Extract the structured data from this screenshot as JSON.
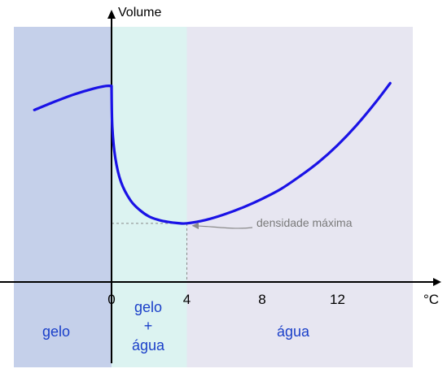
{
  "chart_data": {
    "type": "line",
    "title": "",
    "ylabel": "Volume",
    "xlabel": "°C",
    "x_ticks": [
      {
        "value": 0,
        "label": "0"
      },
      {
        "value": 4,
        "label": "4"
      },
      {
        "value": 8,
        "label": "8"
      },
      {
        "value": 12,
        "label": "12"
      }
    ],
    "xlim": [
      -5.3,
      17.5
    ],
    "ylim": [
      0,
      1
    ],
    "y_ticks": [],
    "grid": false,
    "regions": [
      {
        "name": "gelo",
        "label_lines": [
          "gelo"
        ],
        "x_from": -5.3,
        "x_to": 0,
        "color": "#c5d0ea"
      },
      {
        "name": "gelo-agua",
        "label_lines": [
          "gelo",
          "+",
          "água"
        ],
        "x_from": 0,
        "x_to": 4,
        "color": "#dcf3f1"
      },
      {
        "name": "agua",
        "label_lines": [
          "água"
        ],
        "x_from": 4,
        "x_to": 16,
        "color": "#e7e6f1"
      }
    ],
    "series": [
      {
        "color": "#1a12e6",
        "segments": [
          {
            "x": [
              -4.1,
              -3,
              -2,
              -1,
              -0.3,
              0
            ],
            "y": [
              0.61,
              0.64,
              0.665,
              0.685,
              0.695,
              0.695
            ]
          },
          {
            "x": [
              0,
              0.04,
              0.2,
              0.5,
              1,
              1.5,
              2,
              2.5,
              3,
              3.5,
              4,
              5,
              6,
              7,
              8,
              9,
              10,
              11,
              12,
              13,
              14,
              14.8
            ],
            "y": [
              0.695,
              0.55,
              0.44,
              0.355,
              0.29,
              0.255,
              0.232,
              0.22,
              0.213,
              0.209,
              0.208,
              0.22,
              0.24,
              0.265,
              0.295,
              0.33,
              0.375,
              0.425,
              0.485,
              0.555,
              0.635,
              0.705
            ]
          }
        ]
      }
    ],
    "reference_lines": {
      "x": 4,
      "y": 0.208,
      "style": "dashed",
      "color": "#888888"
    },
    "annotations": [
      {
        "text": "densidade máxima",
        "points_to": {
          "x": 4,
          "y": 0.208
        },
        "color": "#7a7a7a"
      }
    ],
    "label_color": "#1a3fc9"
  }
}
